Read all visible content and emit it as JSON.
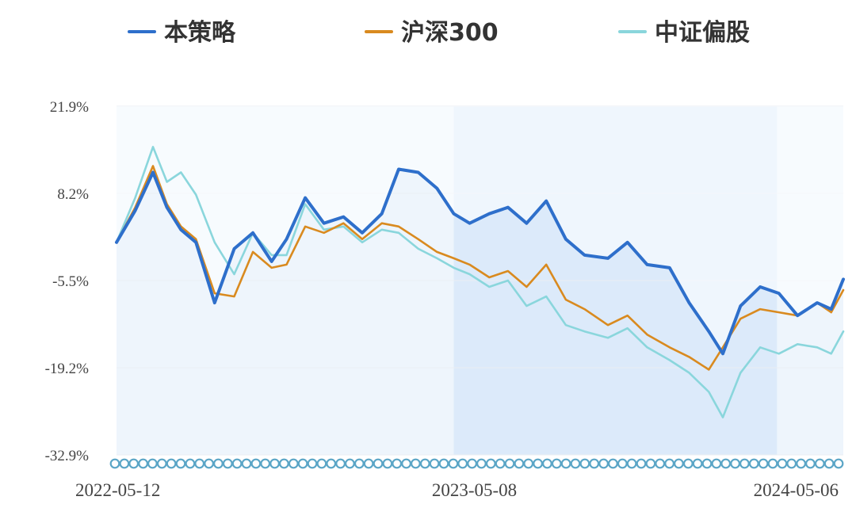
{
  "chart_data": {
    "type": "line",
    "title": "",
    "xlabel": "",
    "ylabel": "",
    "y_tick_labels": [
      "21.9%",
      "8.2%",
      "-5.5%",
      "-19.2%",
      "-32.9%"
    ],
    "y_ticks": [
      21.9,
      8.2,
      -5.5,
      -19.2,
      -32.9
    ],
    "ylim": [
      -32.9,
      21.9
    ],
    "x_tick_labels": [
      "2022-05-12",
      "2023-05-08",
      "2024-05-06"
    ],
    "xlim": [
      "2022-05-12",
      "2024-06-28"
    ],
    "grid": true,
    "legend_position": "top",
    "shaded_band_start": "2023-05-08",
    "shaded_band_end": "2024-04-18",
    "colors": {
      "strategy": "#2e6fcb",
      "csi300": "#d98a1f",
      "convertible": "#8ad6dc",
      "area_fill": "#eef5fc",
      "band_fill": "#dceafa",
      "grid": "#eaeef3",
      "markers": "#5aa5c6"
    },
    "series": [
      {
        "name": "本策略",
        "key": "strategy",
        "x": [
          "2022-05-12",
          "2022-06-01",
          "2022-06-20",
          "2022-07-05",
          "2022-07-20",
          "2022-08-05",
          "2022-08-25",
          "2022-09-15",
          "2022-10-05",
          "2022-10-25",
          "2022-11-10",
          "2022-11-30",
          "2022-12-20",
          "2023-01-10",
          "2023-01-30",
          "2023-02-20",
          "2023-03-10",
          "2023-03-31",
          "2023-04-20",
          "2023-05-08",
          "2023-05-25",
          "2023-06-15",
          "2023-07-05",
          "2023-07-25",
          "2023-08-15",
          "2023-09-05",
          "2023-09-25",
          "2023-10-20",
          "2023-11-10",
          "2023-12-01",
          "2023-12-25",
          "2024-01-15",
          "2024-02-05",
          "2024-02-20",
          "2024-03-10",
          "2024-03-31",
          "2024-04-20",
          "2024-05-10",
          "2024-05-31",
          "2024-06-15",
          "2024-06-28"
        ],
        "y": [
          0.5,
          5.5,
          11.5,
          6.0,
          2.5,
          0.5,
          -9.0,
          -0.5,
          2.0,
          -2.5,
          1.0,
          7.5,
          3.5,
          4.5,
          2.0,
          5.0,
          12.0,
          11.5,
          9.0,
          5.0,
          3.5,
          5.0,
          6.0,
          3.5,
          7.0,
          1.0,
          -1.5,
          -2.0,
          0.5,
          -3.0,
          -3.5,
          -9.0,
          -13.5,
          -17.0,
          -9.5,
          -6.5,
          -7.5,
          -11.0,
          -9.0,
          -10.0,
          -5.3
        ]
      },
      {
        "name": "沪深300",
        "key": "csi300",
        "x": [
          "2022-05-12",
          "2022-06-01",
          "2022-06-20",
          "2022-07-05",
          "2022-07-20",
          "2022-08-05",
          "2022-08-25",
          "2022-09-15",
          "2022-10-05",
          "2022-10-25",
          "2022-11-10",
          "2022-11-30",
          "2022-12-20",
          "2023-01-10",
          "2023-01-30",
          "2023-02-20",
          "2023-03-10",
          "2023-03-31",
          "2023-04-20",
          "2023-05-08",
          "2023-05-25",
          "2023-06-15",
          "2023-07-05",
          "2023-07-25",
          "2023-08-15",
          "2023-09-05",
          "2023-09-25",
          "2023-10-20",
          "2023-11-10",
          "2023-12-01",
          "2023-12-25",
          "2024-01-15",
          "2024-02-05",
          "2024-02-20",
          "2024-03-10",
          "2024-03-31",
          "2024-04-20",
          "2024-05-10",
          "2024-05-31",
          "2024-06-15",
          "2024-06-28"
        ],
        "y": [
          0.5,
          6.0,
          12.5,
          6.5,
          3.0,
          1.0,
          -7.5,
          -8.0,
          -1.0,
          -3.5,
          -3.0,
          3.0,
          2.0,
          3.5,
          1.0,
          3.5,
          3.0,
          1.0,
          -1.0,
          -2.0,
          -3.0,
          -5.0,
          -4.0,
          -6.5,
          -3.0,
          -8.5,
          -10.0,
          -12.5,
          -11.0,
          -14.0,
          -16.0,
          -17.5,
          -19.5,
          -16.0,
          -11.5,
          -10.0,
          -10.5,
          -11.0,
          -9.0,
          -10.5,
          -7.0
        ]
      },
      {
        "name": "中证偏股",
        "key": "convertible",
        "x": [
          "2022-05-12",
          "2022-06-01",
          "2022-06-20",
          "2022-07-05",
          "2022-07-20",
          "2022-08-05",
          "2022-08-25",
          "2022-09-15",
          "2022-10-05",
          "2022-10-25",
          "2022-11-10",
          "2022-11-30",
          "2022-12-20",
          "2023-01-10",
          "2023-01-30",
          "2023-02-20",
          "2023-03-10",
          "2023-03-31",
          "2023-04-20",
          "2023-05-08",
          "2023-05-25",
          "2023-06-15",
          "2023-07-05",
          "2023-07-25",
          "2023-08-15",
          "2023-09-05",
          "2023-09-25",
          "2023-10-20",
          "2023-11-10",
          "2023-12-01",
          "2023-12-25",
          "2024-01-15",
          "2024-02-05",
          "2024-02-20",
          "2024-03-10",
          "2024-03-31",
          "2024-04-20",
          "2024-05-10",
          "2024-05-31",
          "2024-06-15",
          "2024-06-28"
        ],
        "y": [
          0.5,
          7.5,
          15.5,
          10.0,
          11.5,
          8.0,
          0.5,
          -4.5,
          2.0,
          -1.5,
          -1.5,
          6.5,
          2.5,
          3.0,
          0.5,
          2.5,
          2.0,
          -0.5,
          -2.0,
          -3.5,
          -4.5,
          -6.5,
          -5.5,
          -9.5,
          -8.0,
          -12.5,
          -13.5,
          -14.5,
          -13.0,
          -16.0,
          -18.0,
          -20.0,
          -23.0,
          -27.0,
          -20.0,
          -16.0,
          -17.0,
          -15.5,
          -16.0,
          -17.0,
          -13.5
        ]
      }
    ]
  }
}
